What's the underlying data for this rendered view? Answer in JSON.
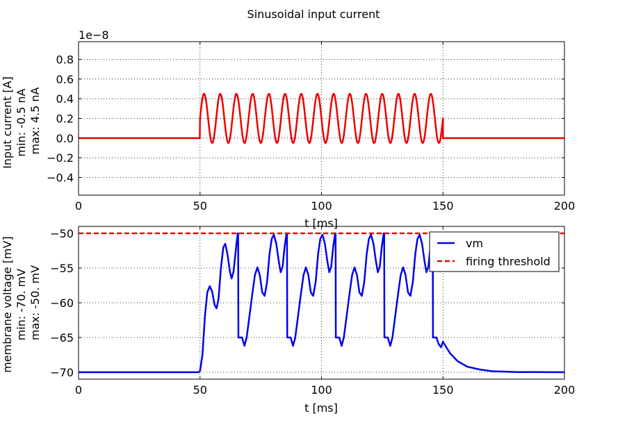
{
  "figure": {
    "suptitle": "Sinusoidal input current"
  },
  "chart_data": [
    {
      "type": "line",
      "title": "",
      "xlabel": "t [ms]",
      "ylabel_lines": [
        "Input current [A]",
        "min: -0.5 nA",
        "max: 4.5 nA"
      ],
      "offset_text": "1e−8",
      "xlim": [
        0,
        200
      ],
      "ylim": [
        -0.58,
        0.98
      ],
      "xticks": [
        0,
        50,
        100,
        150,
        200
      ],
      "xtick_labels": [
        "0",
        "50",
        "100",
        "150",
        "200"
      ],
      "yticks": [
        -0.4,
        -0.2,
        0.0,
        0.2,
        0.4,
        0.6,
        0.8
      ],
      "ytick_labels": [
        "−0.4",
        "−0.2",
        "0.0",
        "0.2",
        "0.4",
        "0.6",
        "0.8"
      ],
      "grid": true,
      "series": [
        {
          "color": "#ee0000",
          "stim_start_ms": 50,
          "stim_end_ms": 150,
          "baseline": 0.0,
          "offset": 0.2,
          "amplitude": 0.25,
          "frequency_khz": 0.15
        }
      ]
    },
    {
      "type": "line",
      "title": "",
      "xlabel": "t [ms]",
      "ylabel_lines": [
        "membrane voltage [mV]",
        "min: -70. mV",
        "max: -50. mV"
      ],
      "xlim": [
        0,
        200
      ],
      "ylim": [
        -71,
        -49
      ],
      "xticks": [
        0,
        50,
        100,
        150,
        200
      ],
      "xtick_labels": [
        "0",
        "50",
        "100",
        "150",
        "200"
      ],
      "yticks": [
        -70,
        -65,
        -60,
        -55,
        -50
      ],
      "ytick_labels": [
        "−70",
        "−65",
        "−60",
        "−55",
        "−50"
      ],
      "grid": true,
      "legend": {
        "placement": "top-right",
        "entries": [
          {
            "label": "vm",
            "color": "#0000ee",
            "style": "solid"
          },
          {
            "label": "firing threshold",
            "color": "#ee0000",
            "style": "dashed"
          }
        ]
      },
      "series": [
        {
          "name": "vm",
          "color": "#0000ee",
          "points": [
            [
              0,
              -70
            ],
            [
              49.5,
              -70
            ],
            [
              50,
              -69.8
            ],
            [
              51,
              -67.5
            ],
            [
              52,
              -62
            ],
            [
              53,
              -58.5
            ],
            [
              54,
              -57.6
            ],
            [
              55,
              -58.4
            ],
            [
              56,
              -60.3
            ],
            [
              56.8,
              -60.8
            ],
            [
              57.6,
              -59.5
            ],
            [
              58.6,
              -55
            ],
            [
              59.6,
              -52
            ],
            [
              60.4,
              -51.5
            ],
            [
              61.3,
              -53
            ],
            [
              62.3,
              -55.5
            ],
            [
              63,
              -56.5
            ],
            [
              63.8,
              -55.5
            ],
            [
              64.7,
              -52.5
            ],
            [
              65.5,
              -50
            ],
            [
              65.7,
              -50
            ],
            [
              65.8,
              -65
            ],
            [
              67.3,
              -65
            ],
            [
              68.3,
              -66.2
            ],
            [
              69.2,
              -65
            ],
            [
              70.5,
              -61.5
            ],
            [
              71.5,
              -58.8
            ],
            [
              72.6,
              -56
            ],
            [
              73.6,
              -54.9
            ],
            [
              74.6,
              -56
            ],
            [
              75.6,
              -58.5
            ],
            [
              76.6,
              -59
            ],
            [
              77.6,
              -57
            ],
            [
              78.6,
              -53
            ],
            [
              79.5,
              -50.8
            ],
            [
              80.4,
              -50.2
            ],
            [
              81.4,
              -51.5
            ],
            [
              82.4,
              -54
            ],
            [
              83.2,
              -55.6
            ],
            [
              84,
              -54.8
            ],
            [
              84.8,
              -52
            ],
            [
              85.6,
              -50
            ],
            [
              85.8,
              -50
            ],
            [
              85.9,
              -65
            ],
            [
              87.3,
              -65
            ],
            [
              88.3,
              -66.2
            ],
            [
              89.2,
              -65
            ],
            [
              90.5,
              -61.5
            ],
            [
              91.5,
              -58.8
            ],
            [
              92.6,
              -56
            ],
            [
              93.6,
              -54.9
            ],
            [
              94.6,
              -56
            ],
            [
              95.6,
              -58.5
            ],
            [
              96.6,
              -59
            ],
            [
              97.6,
              -57
            ],
            [
              98.6,
              -53
            ],
            [
              99.5,
              -50.8
            ],
            [
              100.4,
              -50.2
            ],
            [
              101.4,
              -51.5
            ],
            [
              102.4,
              -54
            ],
            [
              103.2,
              -55.6
            ],
            [
              104,
              -54.8
            ],
            [
              104.8,
              -52
            ],
            [
              105.6,
              -50
            ],
            [
              105.8,
              -50
            ],
            [
              105.9,
              -65
            ],
            [
              107.3,
              -65
            ],
            [
              108.3,
              -66.2
            ],
            [
              109.2,
              -65
            ],
            [
              110.5,
              -61.5
            ],
            [
              111.5,
              -58.8
            ],
            [
              112.6,
              -56
            ],
            [
              113.6,
              -54.9
            ],
            [
              114.6,
              -56
            ],
            [
              115.6,
              -58.5
            ],
            [
              116.6,
              -59
            ],
            [
              117.6,
              -57
            ],
            [
              118.6,
              -53
            ],
            [
              119.5,
              -50.8
            ],
            [
              120.4,
              -50.2
            ],
            [
              121.4,
              -51.5
            ],
            [
              122.4,
              -54
            ],
            [
              123.2,
              -55.6
            ],
            [
              124,
              -54.8
            ],
            [
              124.8,
              -52
            ],
            [
              125.6,
              -50
            ],
            [
              125.8,
              -50
            ],
            [
              125.9,
              -65
            ],
            [
              127.3,
              -65
            ],
            [
              128.3,
              -66.2
            ],
            [
              129.2,
              -65
            ],
            [
              130.5,
              -61.5
            ],
            [
              131.5,
              -58.8
            ],
            [
              132.6,
              -56
            ],
            [
              133.6,
              -54.9
            ],
            [
              134.6,
              -56
            ],
            [
              135.6,
              -58.5
            ],
            [
              136.6,
              -59
            ],
            [
              137.6,
              -57
            ],
            [
              138.6,
              -53
            ],
            [
              139.5,
              -50.8
            ],
            [
              140.4,
              -50.2
            ],
            [
              141.4,
              -51.5
            ],
            [
              142.4,
              -54
            ],
            [
              143.2,
              -55.6
            ],
            [
              144,
              -54.8
            ],
            [
              144.8,
              -52
            ],
            [
              145.6,
              -50
            ],
            [
              145.8,
              -50
            ],
            [
              145.9,
              -65
            ],
            [
              147.3,
              -65
            ],
            [
              148.3,
              -66
            ],
            [
              149.2,
              -66.4
            ],
            [
              150,
              -65.6
            ],
            [
              151,
              -66.2
            ],
            [
              153,
              -67.3
            ],
            [
              156,
              -68.4
            ],
            [
              160,
              -69.2
            ],
            [
              165,
              -69.6
            ],
            [
              170,
              -69.85
            ],
            [
              180,
              -69.97
            ],
            [
              200,
              -70
            ]
          ]
        },
        {
          "name": "firing threshold",
          "color": "#ee0000",
          "points": [
            [
              0,
              -50
            ],
            [
              200,
              -50
            ]
          ]
        }
      ]
    }
  ]
}
